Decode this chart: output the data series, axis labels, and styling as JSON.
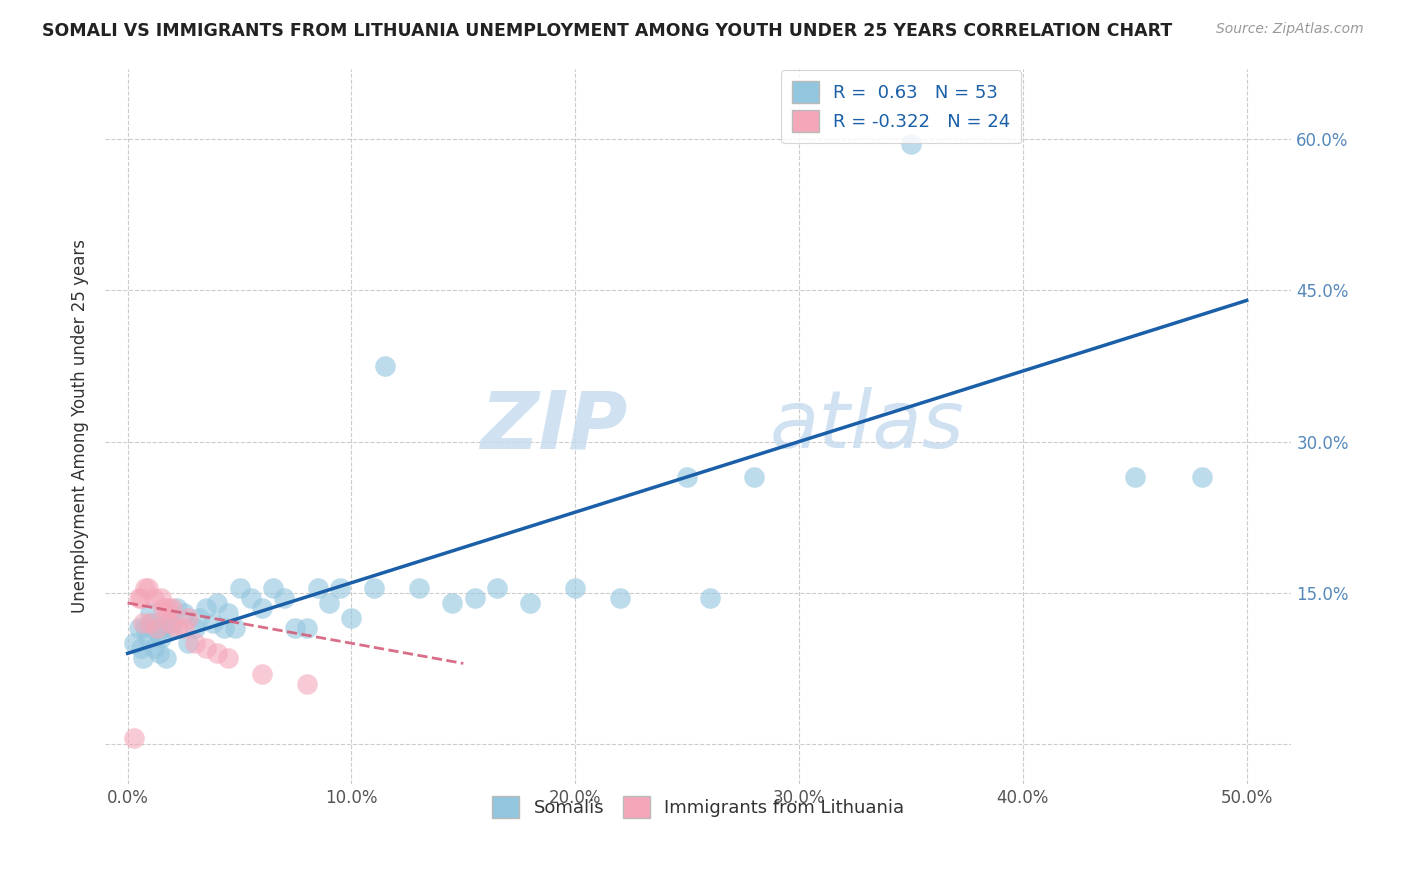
{
  "title": "SOMALI VS IMMIGRANTS FROM LITHUANIA UNEMPLOYMENT AMONG YOUTH UNDER 25 YEARS CORRELATION CHART",
  "source": "Source: ZipAtlas.com",
  "ylabel": "Unemployment Among Youth under 25 years",
  "xlim": [
    -0.01,
    0.52
  ],
  "ylim": [
    -0.04,
    0.67
  ],
  "x_tick_vals": [
    0.0,
    0.1,
    0.2,
    0.3,
    0.4,
    0.5
  ],
  "x_tick_labels": [
    "0.0%",
    "10.0%",
    "20.0%",
    "30.0%",
    "40.0%",
    "50.0%"
  ],
  "y_tick_vals": [
    0.0,
    0.15,
    0.3,
    0.45,
    0.6
  ],
  "y_tick_labels": [
    "",
    "15.0%",
    "30.0%",
    "45.0%",
    "60.0%"
  ],
  "somali_R": 0.63,
  "somali_N": 53,
  "lithuania_R": -0.322,
  "lithuania_N": 24,
  "somali_color": "#92C5DE",
  "somali_line_color": "#1A5FA8",
  "lithuania_color": "#F4A7B9",
  "lithuania_line_color": "#D45E7A",
  "somali_x": [
    0.003,
    0.005,
    0.006,
    0.007,
    0.008,
    0.009,
    0.01,
    0.011,
    0.012,
    0.013,
    0.014,
    0.015,
    0.016,
    0.017,
    0.018,
    0.02,
    0.022,
    0.025,
    0.027,
    0.03,
    0.032,
    0.035,
    0.038,
    0.04,
    0.043,
    0.045,
    0.048,
    0.05,
    0.055,
    0.06,
    0.065,
    0.07,
    0.075,
    0.08,
    0.085,
    0.09,
    0.095,
    0.1,
    0.11,
    0.115,
    0.13,
    0.145,
    0.155,
    0.165,
    0.18,
    0.2,
    0.22,
    0.25,
    0.26,
    0.28,
    0.35,
    0.45,
    0.48
  ],
  "somali_y": [
    0.1,
    0.115,
    0.095,
    0.085,
    0.115,
    0.105,
    0.13,
    0.12,
    0.095,
    0.11,
    0.09,
    0.105,
    0.115,
    0.085,
    0.12,
    0.115,
    0.135,
    0.13,
    0.1,
    0.115,
    0.125,
    0.135,
    0.12,
    0.14,
    0.115,
    0.13,
    0.115,
    0.155,
    0.145,
    0.135,
    0.155,
    0.145,
    0.115,
    0.115,
    0.155,
    0.14,
    0.155,
    0.125,
    0.155,
    0.375,
    0.155,
    0.14,
    0.145,
    0.155,
    0.14,
    0.155,
    0.145,
    0.265,
    0.145,
    0.265,
    0.595,
    0.265,
    0.265
  ],
  "somali_line_x0": 0.0,
  "somali_line_x1": 0.5,
  "somali_line_y0": 0.09,
  "somali_line_y1": 0.44,
  "lithuania_x": [
    0.003,
    0.005,
    0.006,
    0.007,
    0.008,
    0.009,
    0.01,
    0.012,
    0.013,
    0.015,
    0.016,
    0.017,
    0.018,
    0.019,
    0.02,
    0.022,
    0.025,
    0.027,
    0.03,
    0.035,
    0.04,
    0.045,
    0.06,
    0.08
  ],
  "lithuania_y": [
    0.006,
    0.145,
    0.145,
    0.12,
    0.155,
    0.155,
    0.12,
    0.145,
    0.115,
    0.145,
    0.135,
    0.13,
    0.135,
    0.12,
    0.135,
    0.115,
    0.115,
    0.125,
    0.1,
    0.095,
    0.09,
    0.085,
    0.07,
    0.06
  ],
  "lithuania_line_x0": 0.0,
  "lithuania_line_x1": 0.15,
  "lithuania_line_y0": 0.14,
  "lithuania_line_y1": 0.08,
  "watermark_zip": "ZIP",
  "watermark_atlas": "atlas",
  "legend_label_1": "Somalis",
  "legend_label_2": "Immigrants from Lithuania"
}
